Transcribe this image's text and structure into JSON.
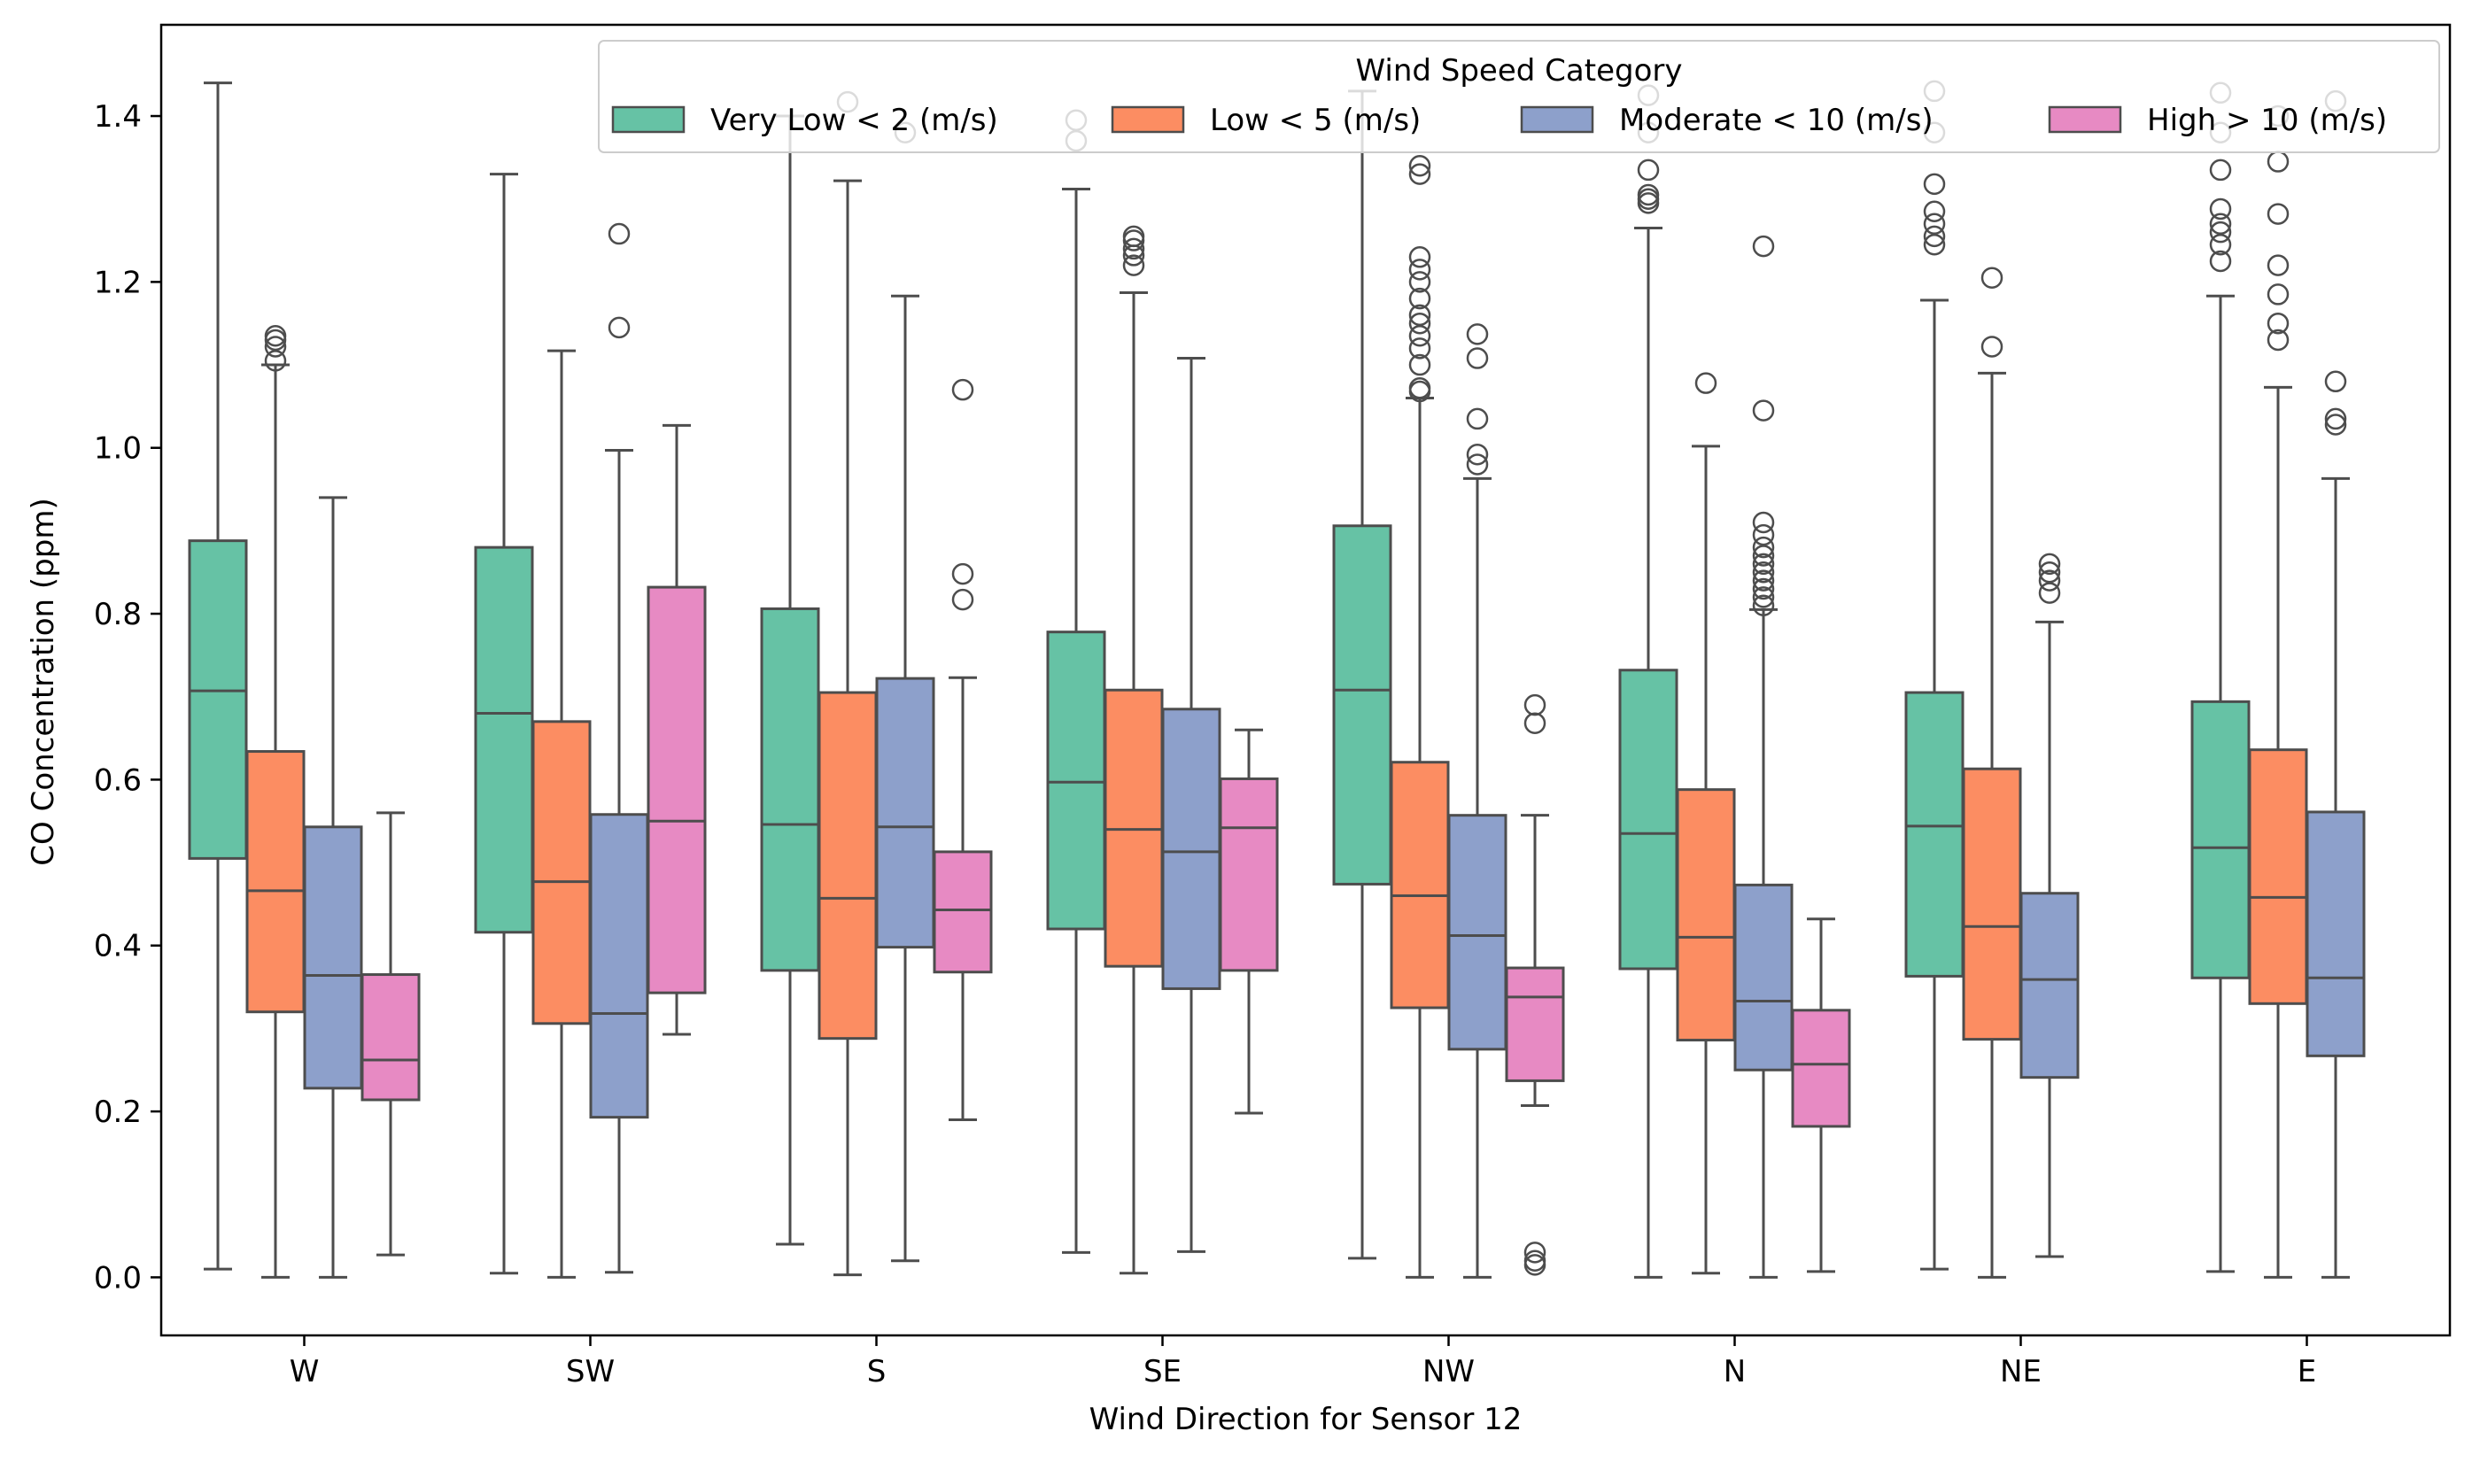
{
  "chart_data": {
    "type": "box",
    "title": "",
    "xlabel": "Wind Direction for Sensor 12",
    "ylabel": "CO Concentration (ppm)",
    "categories": [
      "W",
      "SW",
      "S",
      "SE",
      "NW",
      "N",
      "NE",
      "E"
    ],
    "ylim": [
      -0.07,
      1.51
    ],
    "yticks": [
      0.0,
      0.2,
      0.4,
      0.6,
      0.8,
      1.0,
      1.2,
      1.4
    ],
    "ytick_labels": [
      "0.0",
      "0.2",
      "0.4",
      "0.6",
      "0.8",
      "1.0",
      "1.2",
      "1.4"
    ],
    "grid": false,
    "legend": {
      "title": "Wind Speed Category",
      "placement": "top-right",
      "entries": [
        "Very Low < 2 (m/s)",
        "Low < 5 (m/s)",
        "Moderate < 10 (m/s)",
        "High > 10 (m/s)"
      ]
    },
    "series": [
      {
        "name": "Very Low < 2 (m/s)",
        "color": "#66c2a5",
        "boxes": [
          {
            "category": "W",
            "whislo": 0.01,
            "q1": 0.505,
            "med": 0.707,
            "q3": 0.888,
            "whishi": 1.44,
            "fliers": []
          },
          {
            "category": "SW",
            "whislo": 0.005,
            "q1": 0.416,
            "med": 0.68,
            "q3": 0.88,
            "whishi": 1.33,
            "fliers": []
          },
          {
            "category": "S",
            "whislo": 0.04,
            "q1": 0.37,
            "med": 0.546,
            "q3": 0.806,
            "whishi": 1.4,
            "fliers": []
          },
          {
            "category": "SE",
            "whislo": 0.03,
            "q1": 0.42,
            "med": 0.597,
            "q3": 0.778,
            "whishi": 1.312,
            "fliers": [
              1.37,
              1.395
            ]
          },
          {
            "category": "NW",
            "whislo": 0.023,
            "q1": 0.474,
            "med": 0.708,
            "q3": 0.906,
            "whishi": 1.43,
            "fliers": []
          },
          {
            "category": "N",
            "whislo": 0.0,
            "q1": 0.372,
            "med": 0.535,
            "q3": 0.732,
            "whishi": 1.265,
            "fliers": [
              1.295,
              1.3,
              1.305,
              1.335,
              1.38,
              1.425
            ]
          },
          {
            "category": "NE",
            "whislo": 0.01,
            "q1": 0.363,
            "med": 0.544,
            "q3": 0.705,
            "whishi": 1.178,
            "fliers": [
              1.245,
              1.255,
              1.27,
              1.285,
              1.318,
              1.38,
              1.43
            ]
          },
          {
            "category": "E",
            "whislo": 0.007,
            "q1": 0.361,
            "med": 0.518,
            "q3": 0.694,
            "whishi": 1.183,
            "fliers": [
              1.225,
              1.245,
              1.26,
              1.27,
              1.288,
              1.335,
              1.38,
              1.428
            ]
          }
        ]
      },
      {
        "name": "Low < 5 (m/s)",
        "color": "#fc8d62",
        "boxes": [
          {
            "category": "W",
            "whislo": 0.0,
            "q1": 0.32,
            "med": 0.466,
            "q3": 0.634,
            "whishi": 1.1,
            "fliers": [
              1.105,
              1.122,
              1.13,
              1.135
            ]
          },
          {
            "category": "SW",
            "whislo": 0.0,
            "q1": 0.306,
            "med": 0.477,
            "q3": 0.67,
            "whishi": 1.117,
            "fliers": []
          },
          {
            "category": "S",
            "whislo": 0.003,
            "q1": 0.288,
            "med": 0.457,
            "q3": 0.705,
            "whishi": 1.322,
            "fliers": [
              1.417
            ]
          },
          {
            "category": "SE",
            "whislo": 0.005,
            "q1": 0.375,
            "med": 0.54,
            "q3": 0.708,
            "whishi": 1.187,
            "fliers": [
              1.22,
              1.232,
              1.24,
              1.25,
              1.255
            ]
          },
          {
            "category": "NW",
            "whislo": 0.0,
            "q1": 0.325,
            "med": 0.46,
            "q3": 0.621,
            "whishi": 1.06,
            "fliers": [
              1.068,
              1.072,
              1.1,
              1.12,
              1.135,
              1.15,
              1.16,
              1.18,
              1.2,
              1.215,
              1.23,
              1.33,
              1.34
            ]
          },
          {
            "category": "N",
            "whislo": 0.005,
            "q1": 0.286,
            "med": 0.41,
            "q3": 0.588,
            "whishi": 1.002,
            "fliers": [
              1.078
            ]
          },
          {
            "category": "NE",
            "whislo": 0.0,
            "q1": 0.287,
            "med": 0.423,
            "q3": 0.613,
            "whishi": 1.09,
            "fliers": [
              1.122,
              1.205
            ]
          },
          {
            "category": "E",
            "whislo": 0.0,
            "q1": 0.33,
            "med": 0.458,
            "q3": 0.636,
            "whishi": 1.073,
            "fliers": [
              1.13,
              1.15,
              1.185,
              1.22,
              1.282,
              1.345,
              1.4
            ]
          }
        ]
      },
      {
        "name": "Moderate < 10 (m/s)",
        "color": "#8da0cb",
        "boxes": [
          {
            "category": "W",
            "whislo": 0.0,
            "q1": 0.228,
            "med": 0.364,
            "q3": 0.543,
            "whishi": 0.94,
            "fliers": []
          },
          {
            "category": "SW",
            "whislo": 0.006,
            "q1": 0.193,
            "med": 0.318,
            "q3": 0.558,
            "whishi": 0.997,
            "fliers": [
              1.145,
              1.258
            ]
          },
          {
            "category": "S",
            "whislo": 0.02,
            "q1": 0.398,
            "med": 0.543,
            "q3": 0.722,
            "whishi": 1.183,
            "fliers": [
              1.38
            ]
          },
          {
            "category": "SE",
            "whislo": 0.031,
            "q1": 0.348,
            "med": 0.513,
            "q3": 0.685,
            "whishi": 1.108,
            "fliers": []
          },
          {
            "category": "NW",
            "whislo": 0.0,
            "q1": 0.275,
            "med": 0.412,
            "q3": 0.557,
            "whishi": 0.963,
            "fliers": [
              0.98,
              0.992,
              1.035,
              1.108,
              1.137
            ]
          },
          {
            "category": "N",
            "whislo": 0.0,
            "q1": 0.25,
            "med": 0.333,
            "q3": 0.473,
            "whishi": 0.805,
            "fliers": [
              0.81,
              0.82,
              0.83,
              0.84,
              0.85,
              0.86,
              0.87,
              0.88,
              0.895,
              0.91,
              1.045,
              1.243
            ]
          },
          {
            "category": "NE",
            "whislo": 0.025,
            "q1": 0.241,
            "med": 0.359,
            "q3": 0.463,
            "whishi": 0.79,
            "fliers": [
              0.825,
              0.84,
              0.85,
              0.86
            ]
          },
          {
            "category": "E",
            "whislo": 0.0,
            "q1": 0.267,
            "med": 0.361,
            "q3": 0.561,
            "whishi": 0.963,
            "fliers": [
              1.028,
              1.035,
              1.08,
              1.418
            ]
          }
        ]
      },
      {
        "name": "High > 10 (m/s)",
        "color": "#e78ac3",
        "boxes": [
          {
            "category": "W",
            "whislo": 0.027,
            "q1": 0.214,
            "med": 0.262,
            "q3": 0.365,
            "whishi": 0.56,
            "fliers": []
          },
          {
            "category": "SW",
            "whislo": 0.293,
            "q1": 0.343,
            "med": 0.55,
            "q3": 0.832,
            "whishi": 1.027,
            "fliers": []
          },
          {
            "category": "S",
            "whislo": 0.19,
            "q1": 0.368,
            "med": 0.443,
            "q3": 0.513,
            "whishi": 0.723,
            "fliers": [
              0.817,
              0.848,
              1.07
            ]
          },
          {
            "category": "SE",
            "whislo": 0.198,
            "q1": 0.37,
            "med": 0.542,
            "q3": 0.601,
            "whishi": 0.66,
            "fliers": []
          },
          {
            "category": "NW",
            "whislo": 0.207,
            "q1": 0.237,
            "med": 0.338,
            "q3": 0.373,
            "whishi": 0.557,
            "fliers": [
              0.015,
              0.02,
              0.03,
              0.668,
              0.69
            ]
          },
          {
            "category": "N",
            "whislo": 0.007,
            "q1": 0.182,
            "med": 0.257,
            "q3": 0.322,
            "whishi": 0.432,
            "fliers": []
          }
        ]
      }
    ]
  }
}
